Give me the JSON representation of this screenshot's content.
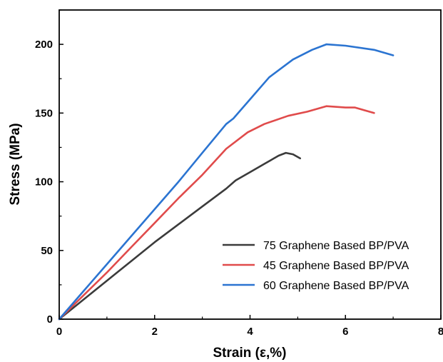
{
  "chart_data": {
    "type": "line",
    "xlabel": "Strain (ε,%)",
    "ylabel": "Stress (MPa)",
    "xlim": [
      0,
      8
    ],
    "ylim": [
      0,
      225
    ],
    "x_ticks": [
      "0",
      "2",
      "4",
      "6",
      "8"
    ],
    "y_ticks": [
      "0",
      "50",
      "100",
      "150",
      "200"
    ],
    "grid": false,
    "legend_position": "bottom-right",
    "series": [
      {
        "name": "75 Graphene Based BP/PVA",
        "color": "#3b3b3b",
        "x": [
          0,
          0.5,
          1.0,
          1.5,
          2.0,
          2.5,
          3.0,
          3.5,
          3.7,
          4.0,
          4.3,
          4.6,
          4.75,
          4.9,
          5.05
        ],
        "y": [
          0,
          14,
          28,
          42,
          56,
          69,
          82,
          95,
          101,
          107,
          113,
          119,
          121,
          120,
          117
        ]
      },
      {
        "name": "45 Graphene Based BP/PVA",
        "color": "#e04b4b",
        "x": [
          0,
          0.5,
          1.0,
          1.5,
          2.0,
          2.5,
          3.0,
          3.5,
          3.95,
          4.3,
          4.8,
          5.2,
          5.6,
          6.0,
          6.2,
          6.6
        ],
        "y": [
          0,
          17,
          34,
          52,
          70,
          88,
          105,
          124,
          136,
          142,
          148,
          151,
          155,
          154,
          154,
          150
        ]
      },
      {
        "name": "60 Graphene Based BP/PVA",
        "color": "#2b74d1",
        "x": [
          0,
          0.5,
          1.0,
          1.5,
          2.0,
          2.5,
          3.0,
          3.5,
          3.65,
          4.0,
          4.4,
          4.9,
          5.3,
          5.6,
          6.0,
          6.6,
          7.0
        ],
        "y": [
          0,
          20,
          40,
          60,
          80,
          100,
          121,
          142,
          146,
          160,
          176,
          189,
          196,
          200,
          199,
          196,
          192
        ]
      }
    ]
  }
}
